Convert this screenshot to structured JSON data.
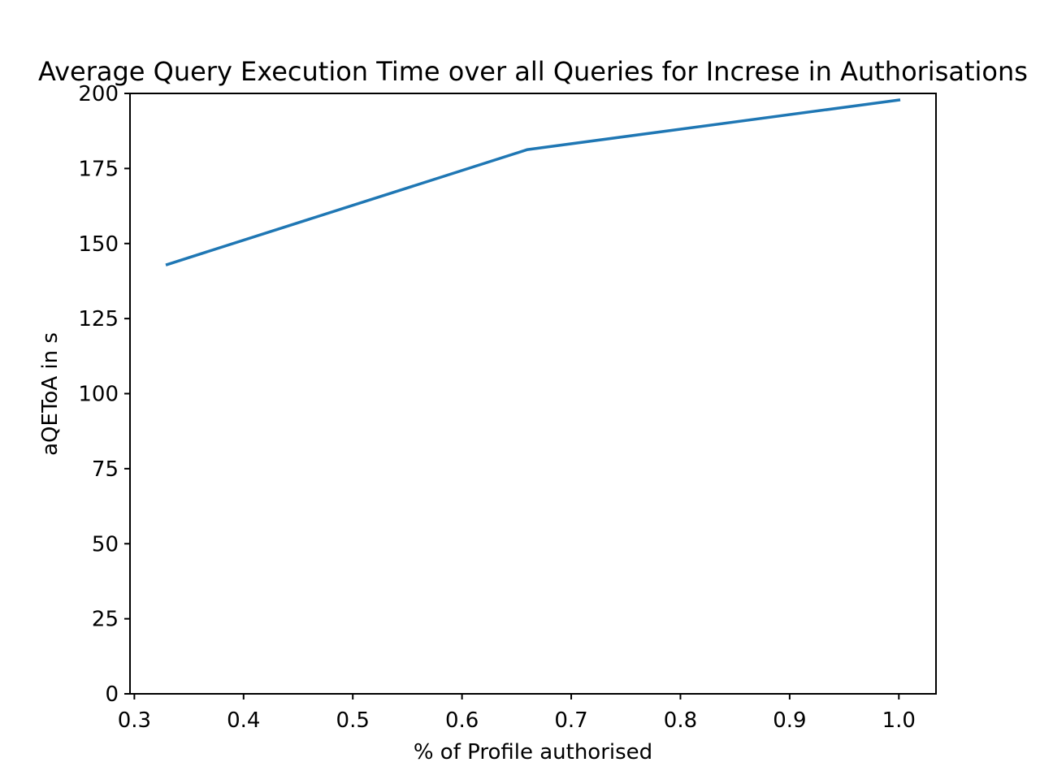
{
  "chart_data": {
    "type": "line",
    "title": "Average Query Execution Time over all Queries for Increse in Authorisations",
    "xlabel": "% of Profile authorised",
    "ylabel": "aQEToA in s",
    "xlim": [
      0.296,
      1.034
    ],
    "ylim": [
      0,
      200
    ],
    "xticks": [
      0.3,
      0.4,
      0.5,
      0.6,
      0.7,
      0.8,
      0.9,
      1.0
    ],
    "xtick_labels": [
      "0.3",
      "0.4",
      "0.5",
      "0.6",
      "0.7",
      "0.8",
      "0.9",
      "1.0"
    ],
    "yticks": [
      0,
      25,
      50,
      75,
      100,
      125,
      150,
      175,
      200
    ],
    "ytick_labels": [
      "0",
      "25",
      "50",
      "75",
      "100",
      "125",
      "150",
      "175",
      "200"
    ],
    "grid": false,
    "series": [
      {
        "x": [
          0.33,
          0.66,
          1.0
        ],
        "y": [
          143,
          181.3,
          197.8
        ],
        "color": "#1f77b4"
      }
    ]
  }
}
